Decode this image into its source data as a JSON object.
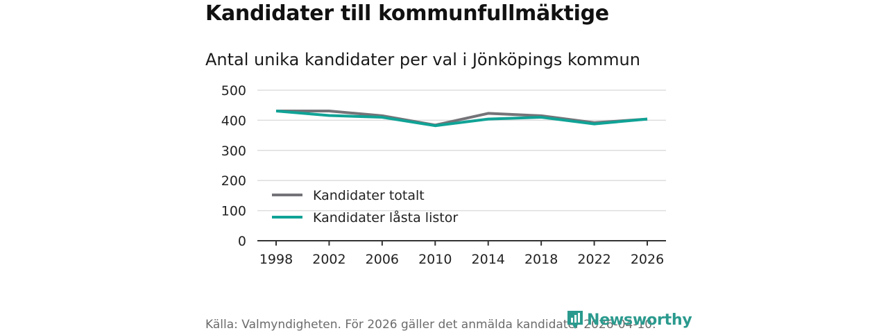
{
  "title": "Kandidater till kommunfullmäktige",
  "subtitle": "Antal unika kandidater per val i Jönköpings kommun",
  "source": "Källa: Valmyndigheten. För 2026 gäller det anmälda kandidater 2026-04-10.",
  "brand": "Newsworthy",
  "colors": {
    "total": "#747378",
    "locked": "#10a396",
    "brand": "#2b9a8e",
    "grid": "#dddddd",
    "axis": "#333333"
  },
  "chart_data": {
    "type": "line",
    "title": "Kandidater till kommunfullmäktige",
    "subtitle": "Antal unika kandidater per val i Jönköpings kommun",
    "x": [
      "1998",
      "2002",
      "2006",
      "2010",
      "2014",
      "2018",
      "2022",
      "2026"
    ],
    "ylim": [
      0,
      500
    ],
    "yticks": [
      "0",
      "100",
      "200",
      "300",
      "400",
      "500"
    ],
    "xlabel": "",
    "ylabel": "",
    "grid": true,
    "legend_position": "bottom-left",
    "series": [
      {
        "name": "Kandidater totalt",
        "color": "#747378",
        "values": [
          431,
          431,
          415,
          384,
          423,
          415,
          392,
          404
        ]
      },
      {
        "name": "Kandidater låsta listor",
        "color": "#10a396",
        "values": [
          431,
          416,
          410,
          382,
          404,
          410,
          388,
          404
        ]
      }
    ]
  }
}
